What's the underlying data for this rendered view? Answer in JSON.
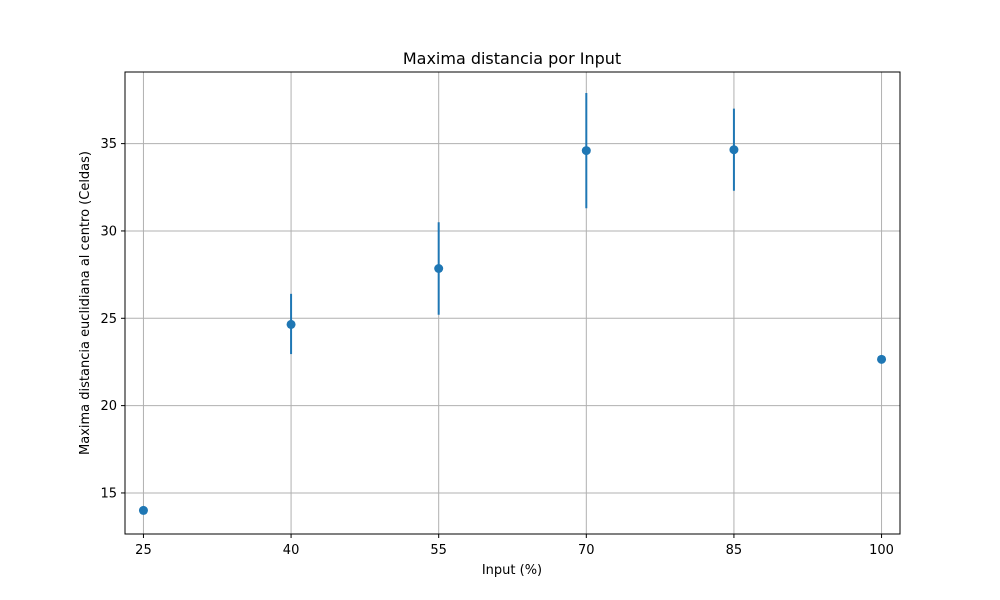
{
  "chart_data": {
    "type": "scatter",
    "title": "Maxima distancia por Input",
    "xlabel": "Input (%)",
    "ylabel": "Maxima distancia euclidiana al centro (Celdas)",
    "x_ticks": [
      "25",
      "40",
      "55",
      "70",
      "85",
      "100"
    ],
    "y_ticks": [
      15,
      20,
      25,
      30,
      35
    ],
    "xlim": [
      23.125,
      101.875
    ],
    "ylim": [
      12.65,
      39.1
    ],
    "grid": true,
    "color": "#1f77b4",
    "points": [
      {
        "x": 25,
        "y": 14.0,
        "err_low": 14.0,
        "err_high": 14.0
      },
      {
        "x": 40,
        "y": 24.65,
        "err_low": 22.95,
        "err_high": 26.4
      },
      {
        "x": 55,
        "y": 27.85,
        "err_low": 25.2,
        "err_high": 30.5
      },
      {
        "x": 70,
        "y": 34.6,
        "err_low": 31.3,
        "err_high": 37.9
      },
      {
        "x": 85,
        "y": 34.65,
        "err_low": 32.3,
        "err_high": 37.0
      },
      {
        "x": 100,
        "y": 22.65,
        "err_low": 22.65,
        "err_high": 22.65
      }
    ]
  }
}
